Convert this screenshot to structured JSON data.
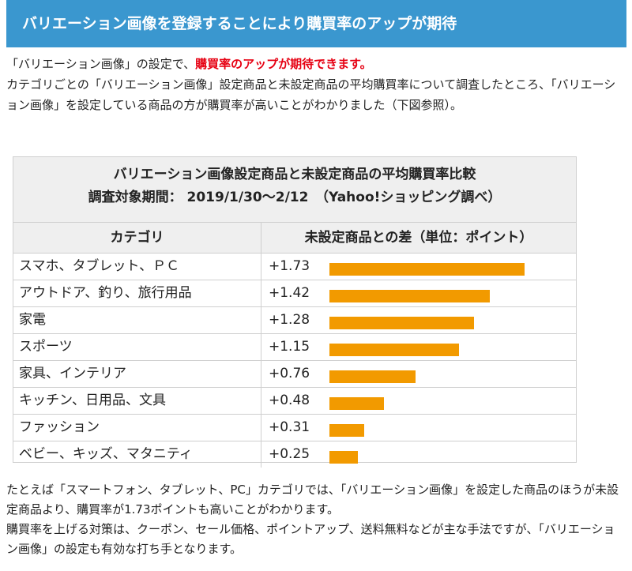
{
  "header": {
    "title": "バリエーション画像を登録することにより購買率のアップが期待"
  },
  "intro": {
    "line1_prefix": "「バリエーション画像」の設定で、",
    "line1_emphasis": "購買率のアップが期待できます。",
    "paragraph": "カテゴリごとの「バリエーション画像」設定商品と未設定商品の平均購買率について調査したところ、「バリエーション画像」を設定している商品の方が購買率が高いことがわかりました（下図参照）。"
  },
  "table": {
    "title": "バリエーション画像設定商品と未設定商品の平均購買率比較",
    "subtitle": "調査対象期間： 2019/1/30〜2/12　（Yahoo!ショッピング調べ）",
    "col_category": "カテゴリ",
    "col_diff": "未設定商品との差（単位：ポイント）",
    "bar_color": "#f29a00"
  },
  "chart_data": {
    "type": "bar",
    "categories": [
      "スマホ、タブレット、ＰＣ",
      "アウトドア、釣り、旅行用品",
      "家電",
      "スポーツ",
      "家具、インテリア",
      "キッチン、日用品、文具",
      "ファッション",
      "ベビー、キッズ、マタニティ"
    ],
    "values": [
      1.73,
      1.42,
      1.28,
      1.15,
      0.76,
      0.48,
      0.31,
      0.25
    ],
    "labels": [
      "+1.73",
      "+1.42",
      "+1.28",
      "+1.15",
      "+0.76",
      "+0.48",
      "+0.31",
      "+0.25"
    ],
    "title": "バリエーション画像設定商品と未設定商品の平均購買率比較",
    "xlabel": "",
    "ylabel": "未設定商品との差（単位：ポイント）"
  },
  "outro": {
    "p1": "たとえば「スマートフォン、タブレット、PC」カテゴリでは、「バリエーション画像」を設定した商品のほうが未設定商品より、購買率が1.73ポイントも高いことがわかります。",
    "p2": "購買率を上げる対策は、クーポン、セール価格、ポイントアップ、送料無料などが主な手法ですが、「バリエーション画像」の設定も有効な打ち手となります。"
  }
}
